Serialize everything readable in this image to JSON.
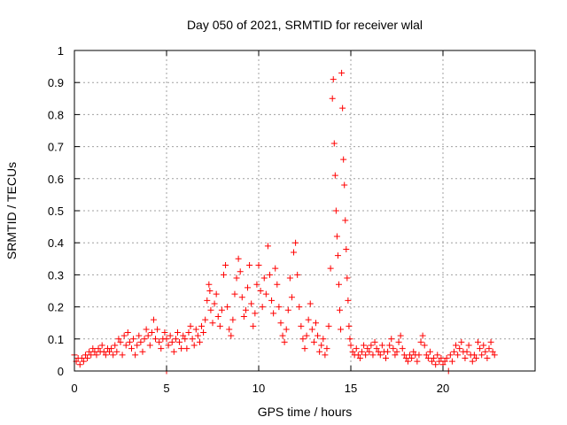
{
  "chart_data": {
    "type": "scatter",
    "title": "Day 050 of 2021, SRMTID for receiver wlal",
    "xlabel": "GPS time / hours",
    "ylabel": "SRMTID / TECUs",
    "xlim": [
      0,
      25
    ],
    "ylim": [
      0,
      1
    ],
    "xticks": [
      0,
      5,
      10,
      15,
      20
    ],
    "yticks": [
      0,
      0.1,
      0.2,
      0.3,
      0.4,
      0.5,
      0.6,
      0.7,
      0.8,
      0.9,
      1
    ],
    "xtick_labels": [
      "0",
      "5",
      "10",
      "15",
      "20"
    ],
    "ytick_labels": [
      "0",
      "0.1",
      "0.2",
      "0.3",
      "0.4",
      "0.5",
      "0.6",
      "0.7",
      "0.8",
      "0.9",
      "1"
    ],
    "grid": true,
    "marker": "+",
    "color": "#ff0000",
    "series": [
      {
        "name": "SRMTID",
        "points": [
          [
            0.0,
            0.05
          ],
          [
            0.1,
            0.03
          ],
          [
            0.2,
            0.04
          ],
          [
            0.3,
            0.02
          ],
          [
            0.4,
            0.04
          ],
          [
            0.5,
            0.03
          ],
          [
            0.6,
            0.05
          ],
          [
            0.7,
            0.04
          ],
          [
            0.8,
            0.06
          ],
          [
            0.9,
            0.05
          ],
          [
            1.0,
            0.07
          ],
          [
            1.1,
            0.06
          ],
          [
            1.2,
            0.05
          ],
          [
            1.3,
            0.07
          ],
          [
            1.4,
            0.06
          ],
          [
            1.5,
            0.08
          ],
          [
            1.6,
            0.06
          ],
          [
            1.7,
            0.05
          ],
          [
            1.8,
            0.07
          ],
          [
            1.9,
            0.06
          ],
          [
            2.0,
            0.07
          ],
          [
            2.1,
            0.05
          ],
          [
            2.2,
            0.08
          ],
          [
            2.3,
            0.06
          ],
          [
            2.4,
            0.1
          ],
          [
            2.5,
            0.09
          ],
          [
            2.6,
            0.05
          ],
          [
            2.7,
            0.11
          ],
          [
            2.8,
            0.08
          ],
          [
            2.9,
            0.12
          ],
          [
            3.0,
            0.09
          ],
          [
            3.1,
            0.07
          ],
          [
            3.2,
            0.1
          ],
          [
            3.3,
            0.05
          ],
          [
            3.4,
            0.08
          ],
          [
            3.5,
            0.11
          ],
          [
            3.6,
            0.09
          ],
          [
            3.7,
            0.06
          ],
          [
            3.8,
            0.1
          ],
          [
            3.9,
            0.13
          ],
          [
            4.0,
            0.11
          ],
          [
            4.1,
            0.08
          ],
          [
            4.2,
            0.12
          ],
          [
            4.3,
            0.16
          ],
          [
            4.4,
            0.1
          ],
          [
            4.5,
            0.13
          ],
          [
            4.6,
            0.09
          ],
          [
            4.7,
            0.07
          ],
          [
            4.8,
            0.1
          ],
          [
            4.9,
            0.12
          ],
          [
            5.0,
            0.0
          ],
          [
            5.0,
            0.1
          ],
          [
            5.1,
            0.08
          ],
          [
            5.2,
            0.11
          ],
          [
            5.3,
            0.09
          ],
          [
            5.4,
            0.06
          ],
          [
            5.5,
            0.1
          ],
          [
            5.6,
            0.12
          ],
          [
            5.7,
            0.09
          ],
          [
            5.8,
            0.07
          ],
          [
            5.9,
            0.11
          ],
          [
            6.0,
            0.1
          ],
          [
            6.1,
            0.07
          ],
          [
            6.2,
            0.12
          ],
          [
            6.3,
            0.14
          ],
          [
            6.4,
            0.1
          ],
          [
            6.5,
            0.08
          ],
          [
            6.6,
            0.13
          ],
          [
            6.7,
            0.11
          ],
          [
            6.8,
            0.09
          ],
          [
            6.9,
            0.14
          ],
          [
            7.0,
            0.12
          ],
          [
            7.1,
            0.16
          ],
          [
            7.2,
            0.22
          ],
          [
            7.3,
            0.27
          ],
          [
            7.35,
            0.25
          ],
          [
            7.4,
            0.19
          ],
          [
            7.5,
            0.15
          ],
          [
            7.6,
            0.21
          ],
          [
            7.7,
            0.24
          ],
          [
            7.8,
            0.17
          ],
          [
            7.9,
            0.14
          ],
          [
            8.0,
            0.19
          ],
          [
            8.1,
            0.3
          ],
          [
            8.2,
            0.33
          ],
          [
            8.3,
            0.2
          ],
          [
            8.4,
            0.13
          ],
          [
            8.5,
            0.11
          ],
          [
            8.6,
            0.16
          ],
          [
            8.7,
            0.24
          ],
          [
            8.8,
            0.29
          ],
          [
            8.9,
            0.35
          ],
          [
            9.0,
            0.31
          ],
          [
            9.1,
            0.23
          ],
          [
            9.2,
            0.17
          ],
          [
            9.3,
            0.19
          ],
          [
            9.4,
            0.26
          ],
          [
            9.5,
            0.33
          ],
          [
            9.6,
            0.21
          ],
          [
            9.7,
            0.14
          ],
          [
            9.8,
            0.18
          ],
          [
            9.9,
            0.27
          ],
          [
            10.0,
            0.33
          ],
          [
            10.1,
            0.25
          ],
          [
            10.2,
            0.2
          ],
          [
            10.3,
            0.29
          ],
          [
            10.4,
            0.24
          ],
          [
            10.5,
            0.39
          ],
          [
            10.6,
            0.3
          ],
          [
            10.7,
            0.22
          ],
          [
            10.8,
            0.18
          ],
          [
            10.9,
            0.32
          ],
          [
            11.0,
            0.27
          ],
          [
            11.1,
            0.2
          ],
          [
            11.2,
            0.15
          ],
          [
            11.3,
            0.11
          ],
          [
            11.4,
            0.09
          ],
          [
            11.5,
            0.13
          ],
          [
            11.6,
            0.19
          ],
          [
            11.7,
            0.29
          ],
          [
            11.8,
            0.23
          ],
          [
            11.9,
            0.37
          ],
          [
            12.0,
            0.4
          ],
          [
            12.1,
            0.3
          ],
          [
            12.2,
            0.2
          ],
          [
            12.3,
            0.14
          ],
          [
            12.4,
            0.1
          ],
          [
            12.5,
            0.07
          ],
          [
            12.6,
            0.11
          ],
          [
            12.7,
            0.16
          ],
          [
            12.8,
            0.21
          ],
          [
            12.9,
            0.13
          ],
          [
            13.0,
            0.09
          ],
          [
            13.1,
            0.15
          ],
          [
            13.2,
            0.11
          ],
          [
            13.3,
            0.06
          ],
          [
            13.4,
            0.08
          ],
          [
            13.5,
            0.1
          ],
          [
            13.6,
            0.05
          ],
          [
            13.7,
            0.07
          ],
          [
            13.8,
            0.14
          ],
          [
            13.9,
            0.32
          ],
          [
            14.0,
            0.85
          ],
          [
            14.05,
            0.91
          ],
          [
            14.1,
            0.71
          ],
          [
            14.15,
            0.61
          ],
          [
            14.2,
            0.5
          ],
          [
            14.25,
            0.42
          ],
          [
            14.3,
            0.36
          ],
          [
            14.35,
            0.27
          ],
          [
            14.4,
            0.19
          ],
          [
            14.45,
            0.13
          ],
          [
            14.5,
            0.93
          ],
          [
            14.55,
            0.82
          ],
          [
            14.6,
            0.66
          ],
          [
            14.65,
            0.58
          ],
          [
            14.7,
            0.47
          ],
          [
            14.75,
            0.38
          ],
          [
            14.8,
            0.29
          ],
          [
            14.85,
            0.22
          ],
          [
            14.9,
            0.14
          ],
          [
            14.95,
            0.1
          ],
          [
            15.0,
            0.08
          ],
          [
            15.1,
            0.06
          ],
          [
            15.2,
            0.05
          ],
          [
            15.3,
            0.07
          ],
          [
            15.4,
            0.05
          ],
          [
            15.5,
            0.04
          ],
          [
            15.6,
            0.06
          ],
          [
            15.7,
            0.08
          ],
          [
            15.8,
            0.05
          ],
          [
            15.9,
            0.07
          ],
          [
            16.0,
            0.06
          ],
          [
            16.1,
            0.08
          ],
          [
            16.2,
            0.05
          ],
          [
            16.3,
            0.09
          ],
          [
            16.4,
            0.07
          ],
          [
            16.5,
            0.06
          ],
          [
            16.6,
            0.05
          ],
          [
            16.7,
            0.08
          ],
          [
            16.8,
            0.06
          ],
          [
            16.9,
            0.04
          ],
          [
            17.0,
            0.06
          ],
          [
            17.1,
            0.08
          ],
          [
            17.2,
            0.1
          ],
          [
            17.3,
            0.07
          ],
          [
            17.4,
            0.05
          ],
          [
            17.5,
            0.06
          ],
          [
            17.6,
            0.09
          ],
          [
            17.7,
            0.11
          ],
          [
            17.8,
            0.07
          ],
          [
            17.9,
            0.05
          ],
          [
            18.0,
            0.04
          ],
          [
            18.1,
            0.03
          ],
          [
            18.2,
            0.05
          ],
          [
            18.3,
            0.04
          ],
          [
            18.4,
            0.06
          ],
          [
            18.5,
            0.05
          ],
          [
            18.6,
            0.03
          ],
          [
            18.7,
            0.05
          ],
          [
            18.8,
            0.09
          ],
          [
            18.9,
            0.11
          ],
          [
            19.0,
            0.08
          ],
          [
            19.1,
            0.05
          ],
          [
            19.2,
            0.04
          ],
          [
            19.3,
            0.06
          ],
          [
            19.4,
            0.03
          ],
          [
            19.5,
            0.04
          ],
          [
            19.6,
            0.02
          ],
          [
            19.7,
            0.05
          ],
          [
            19.8,
            0.03
          ],
          [
            19.9,
            0.04
          ],
          [
            20.0,
            0.02
          ],
          [
            20.1,
            0.03
          ],
          [
            20.2,
            0.04
          ],
          [
            20.3,
            0.0
          ],
          [
            20.4,
            0.05
          ],
          [
            20.5,
            0.03
          ],
          [
            20.6,
            0.06
          ],
          [
            20.7,
            0.08
          ],
          [
            20.8,
            0.05
          ],
          [
            20.9,
            0.07
          ],
          [
            21.0,
            0.09
          ],
          [
            21.1,
            0.06
          ],
          [
            21.2,
            0.04
          ],
          [
            21.3,
            0.06
          ],
          [
            21.4,
            0.08
          ],
          [
            21.5,
            0.05
          ],
          [
            21.6,
            0.03
          ],
          [
            21.7,
            0.05
          ],
          [
            21.8,
            0.04
          ],
          [
            21.9,
            0.09
          ],
          [
            22.0,
            0.07
          ],
          [
            22.1,
            0.05
          ],
          [
            22.2,
            0.08
          ],
          [
            22.3,
            0.06
          ],
          [
            22.4,
            0.04
          ],
          [
            22.5,
            0.07
          ],
          [
            22.6,
            0.09
          ],
          [
            22.7,
            0.06
          ],
          [
            22.8,
            0.05
          ]
        ]
      }
    ]
  }
}
